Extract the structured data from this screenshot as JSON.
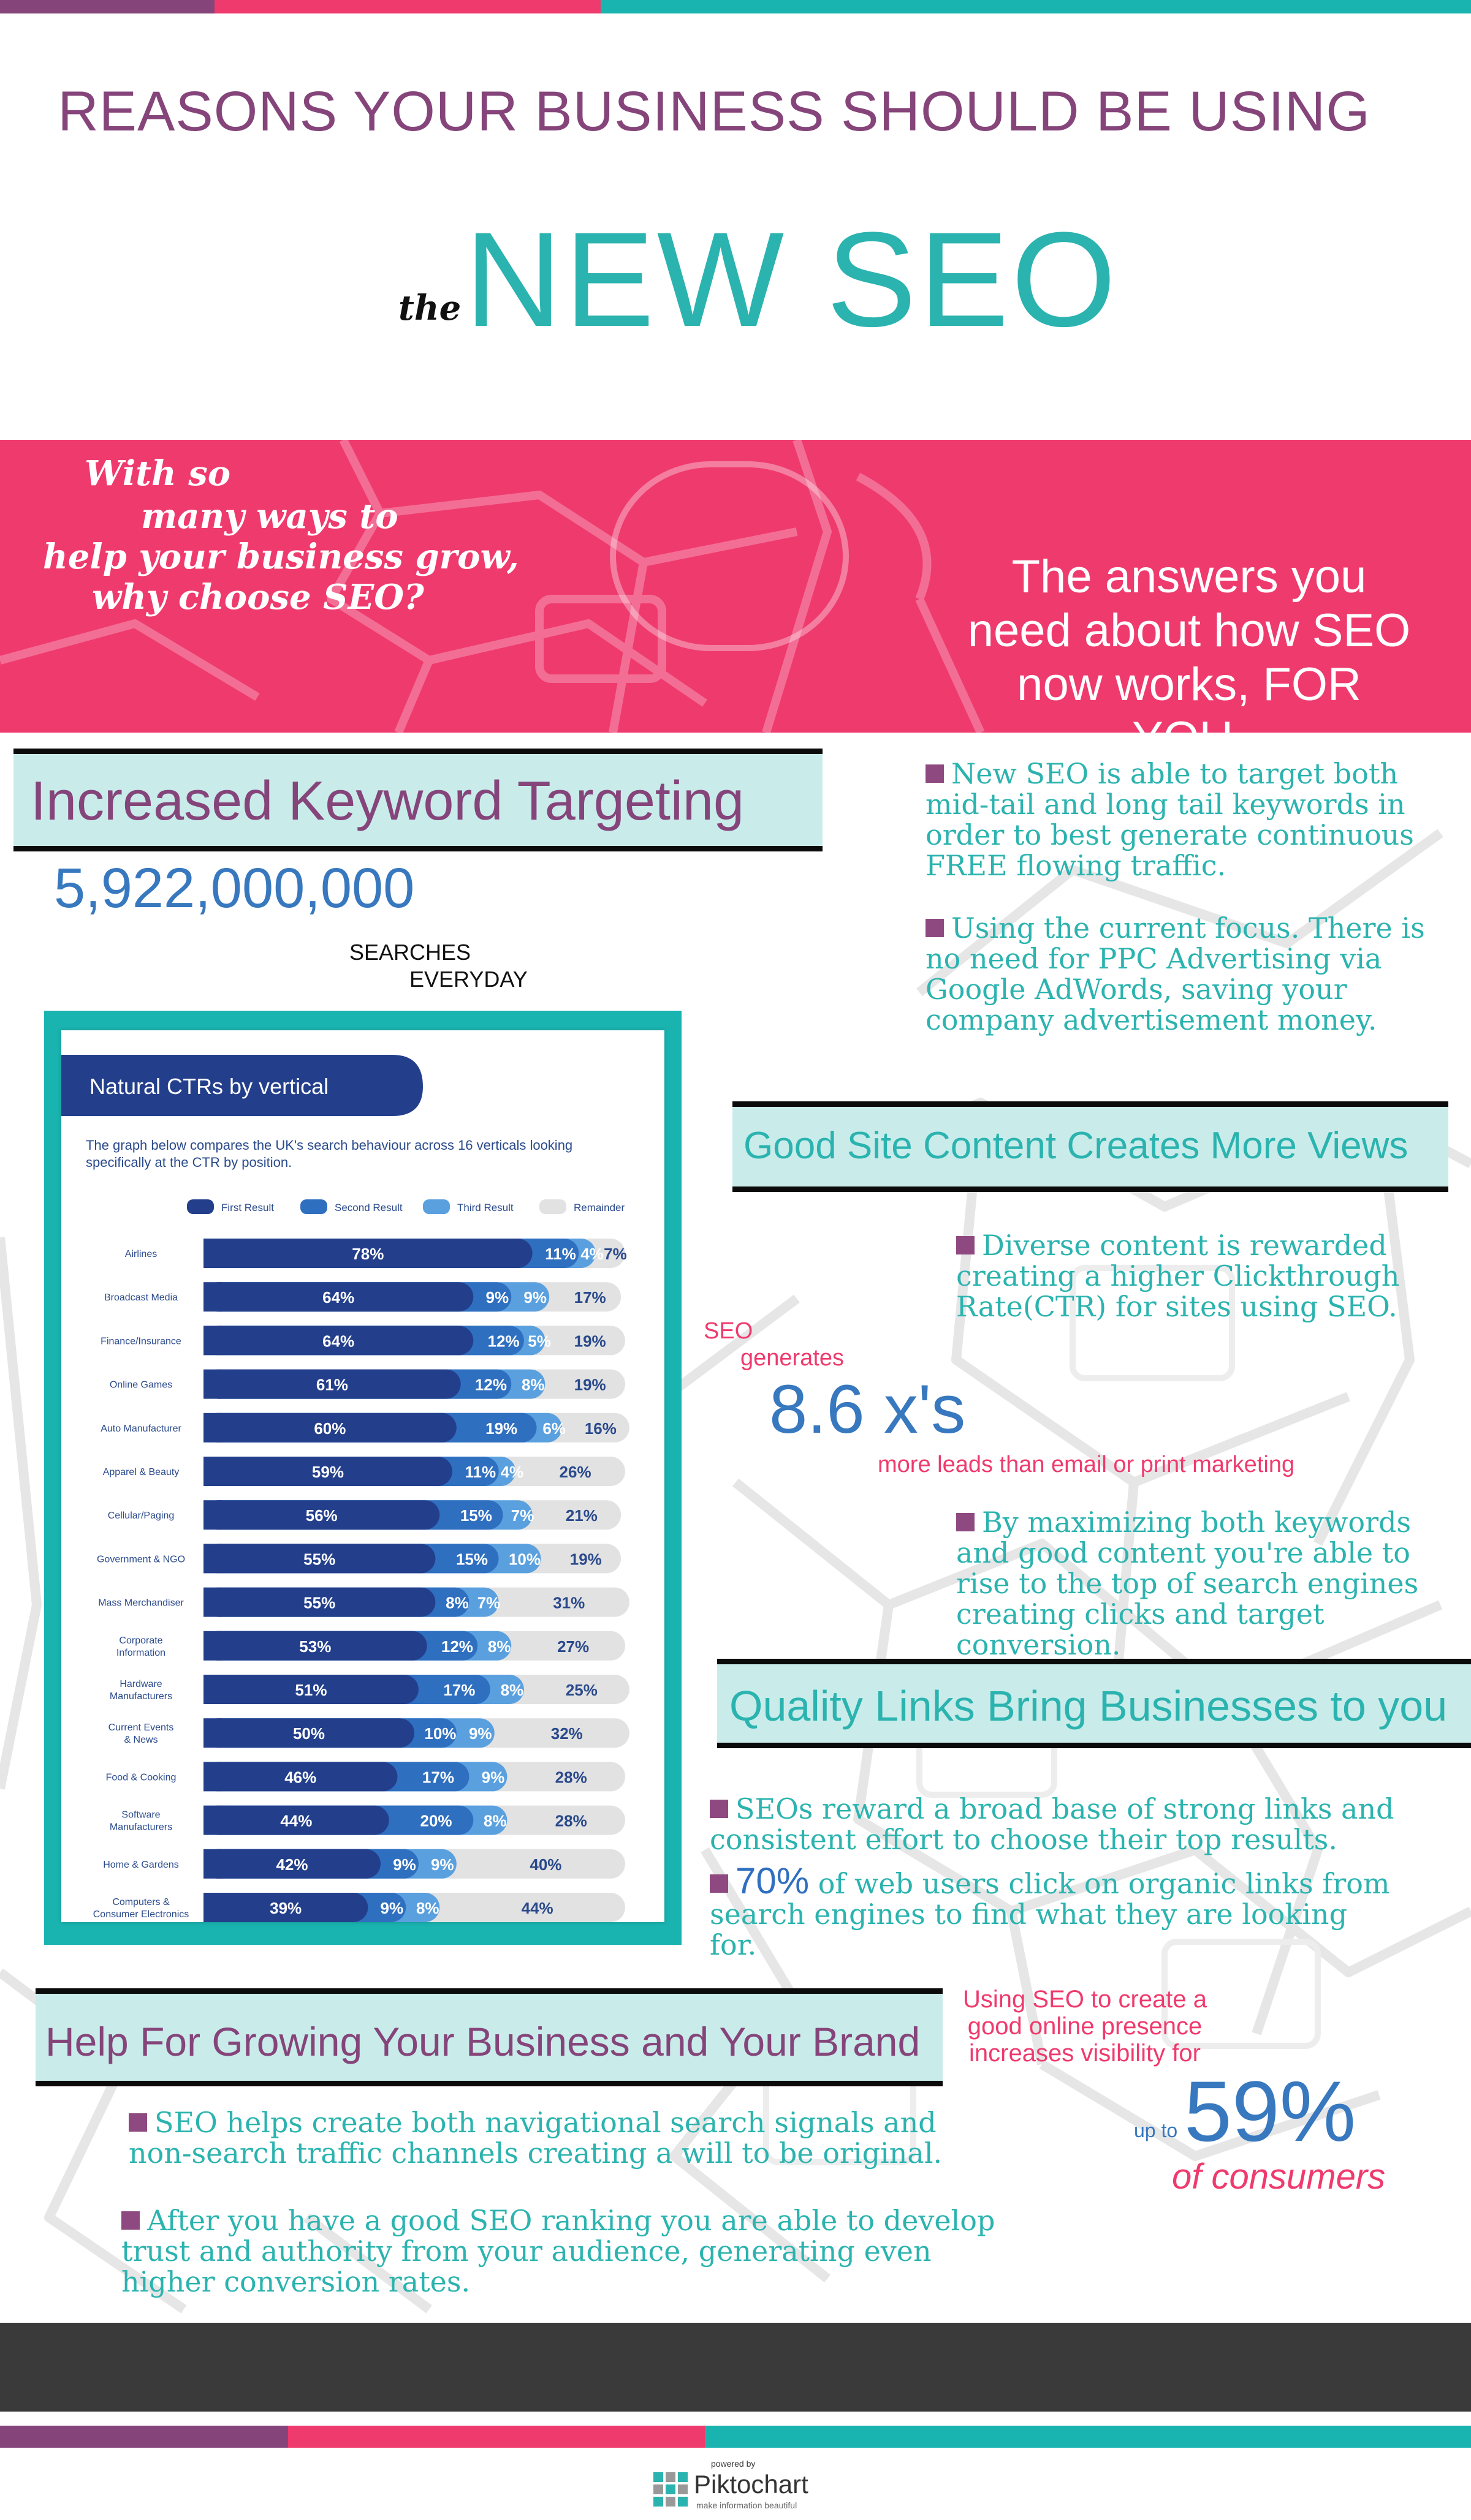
{
  "header": {
    "line1": "REASONS YOUR BUSINESS SHOULD BE USING",
    "the": "the",
    "big": "NEW SEO"
  },
  "banner": {
    "hand_lines": [
      "With so",
      "many ways to",
      "help your business grow,",
      "why choose SEO?"
    ],
    "answers": "The answers you need about how SEO now works, FOR YOU."
  },
  "keyword_section": {
    "heading": "Increased Keyword Targeting",
    "big_number": "5,922,000,000",
    "searches": "SEARCHES",
    "everyday": "EVERYDAY",
    "para1": "New SEO is able to target both mid-tail and long tail keywords in order to best generate continuous FREE flowing traffic.",
    "para2": "Using the current focus. There is no need for PPC Advertising via Google AdWords, saving your company advertisement money."
  },
  "content_section": {
    "heading": "Good Site Content Creates More Views",
    "para1": "Diverse content is rewarded creating a higher Clickthrough Rate(CTR) for sites using SEO.",
    "seo": "SEO",
    "generates": "generates",
    "big": "8.6 x's",
    "more_leads": "more leads than email or print marketing",
    "para2": "By maximizing both keywords and good content you're able to rise to the top of search engines creating clicks and target conversion."
  },
  "links_section": {
    "heading": "Quality Links Bring Businesses to you",
    "para1": "SEOs reward a broad base of strong links and consistent effort to choose their top results.",
    "para2_big": "70%",
    "para2_rest": " of web users click on organic links from search engines to find what they are looking for."
  },
  "brand_section": {
    "heading": "Help For Growing Your Business and Your Brand",
    "stat_text": "Using SEO to create a good online presence increases visibility for",
    "up_to": "up to",
    "big": "59%",
    "of_consumers": "of consumers",
    "para1": "SEO helps create both navigational search signals and non-search traffic channels creating a will to be original.",
    "para2": "After you have a good SEO ranking you are able to develop trust and authority from your audience, generating even higher conversion rates."
  },
  "footer": {
    "powered_by": "powered by",
    "brand": "Piktochart",
    "tagline": "make information beautiful"
  },
  "colors": {
    "purple": "#85457a",
    "pink": "#ef3a6d",
    "teal": "#2bb3af",
    "navy": "#233f8c",
    "blue": "#3778bf"
  },
  "chart_data": {
    "type": "bar",
    "stacked": true,
    "orientation": "horizontal",
    "title": "Natural CTRs by vertical",
    "subtitle": "The graph below compares the UK's search behaviour across 16 verticals looking specifically at the CTR by position.",
    "categories": [
      "Airlines",
      "Broadcast Media",
      "Finance/Insurance",
      "Online Games",
      "Auto Manufacturer",
      "Apparel & Beauty",
      "Cellular/Paging",
      "Government & NGO",
      "Mass Merchandiser",
      "Corporate Information",
      "Hardware Manufacturers",
      "Current Events & News",
      "Food & Cooking",
      "Software Manufacturers",
      "Home & Gardens",
      "Computers & Consumer Electronics"
    ],
    "series": [
      {
        "name": "First Result",
        "color": "#233f8c",
        "values": [
          78,
          64,
          64,
          61,
          60,
          59,
          56,
          55,
          55,
          53,
          51,
          50,
          46,
          44,
          42,
          39
        ]
      },
      {
        "name": "Second Result",
        "color": "#2f6fc0",
        "values": [
          11,
          9,
          12,
          12,
          19,
          11,
          15,
          15,
          8,
          12,
          17,
          10,
          17,
          20,
          9,
          9
        ]
      },
      {
        "name": "Third Result",
        "color": "#5aa0df",
        "values": [
          4,
          9,
          5,
          8,
          6,
          4,
          7,
          10,
          7,
          8,
          8,
          9,
          9,
          8,
          9,
          8
        ]
      },
      {
        "name": "Remainder",
        "color": "#e2e2e2",
        "values": [
          7,
          17,
          19,
          19,
          16,
          26,
          21,
          19,
          31,
          27,
          25,
          32,
          28,
          28,
          40,
          44
        ]
      }
    ],
    "value_suffix": "%",
    "xlim": [
      0,
      100
    ]
  }
}
